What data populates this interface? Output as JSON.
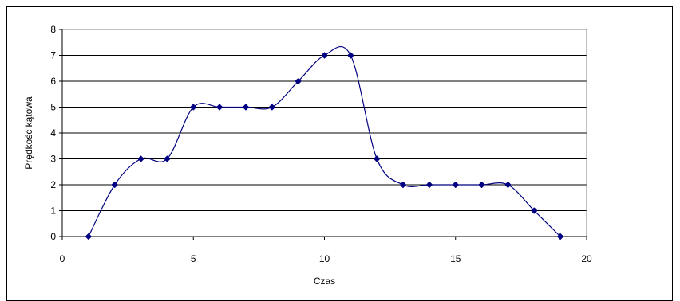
{
  "chart_data": {
    "type": "scatter",
    "smoothed_line": true,
    "title": "",
    "xlabel": "Czas",
    "ylabel": "Prędkość kątowa",
    "xlim": [
      0,
      20
    ],
    "ylim": [
      0,
      8
    ],
    "xticks": [
      "0",
      "5",
      "10",
      "15",
      "20"
    ],
    "yticks": [
      "0",
      "1",
      "2",
      "3",
      "4",
      "5",
      "6",
      "7",
      "8"
    ],
    "grid": "horizontal",
    "legend": "none",
    "series": [
      {
        "color": "#000080",
        "marker": "diamond",
        "points": [
          {
            "x": 1,
            "y": 0
          },
          {
            "x": 2,
            "y": 2
          },
          {
            "x": 3,
            "y": 3
          },
          {
            "x": 4,
            "y": 3
          },
          {
            "x": 5,
            "y": 5
          },
          {
            "x": 6,
            "y": 5
          },
          {
            "x": 7,
            "y": 5
          },
          {
            "x": 8,
            "y": 5
          },
          {
            "x": 9,
            "y": 6
          },
          {
            "x": 10,
            "y": 7
          },
          {
            "x": 11,
            "y": 7
          },
          {
            "x": 12,
            "y": 3
          },
          {
            "x": 13,
            "y": 2
          },
          {
            "x": 14,
            "y": 2
          },
          {
            "x": 15,
            "y": 2
          },
          {
            "x": 16,
            "y": 2
          },
          {
            "x": 17,
            "y": 2
          },
          {
            "x": 18,
            "y": 1
          },
          {
            "x": 19,
            "y": 0
          }
        ]
      }
    ]
  }
}
